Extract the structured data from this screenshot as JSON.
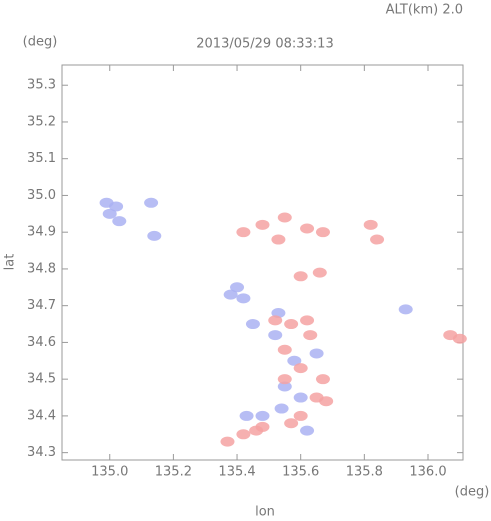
{
  "chart_data": {
    "type": "scatter",
    "title": "2013/05/29 08:33:13",
    "subtitle": "ALT(km) 2.0",
    "x_label": "lon",
    "y_label": "lat",
    "x_unit": "(deg)",
    "y_unit": "(deg)",
    "xlim": [
      134.85,
      136.11
    ],
    "ylim": [
      34.28,
      35.355
    ],
    "xticks": [
      {
        "value": 135,
        "label": "135.0"
      },
      135.2,
      135.4,
      135.6,
      135.8,
      {
        "value": 136,
        "label": "136.0"
      }
    ],
    "yticks": [
      34.3,
      34.4,
      34.5,
      34.6,
      34.7,
      34.8,
      34.9,
      {
        "value": 35,
        "label": "35.0"
      },
      35.1,
      35.2,
      35.3
    ],
    "series": [
      {
        "color": "#aab2f2",
        "x": [
          134.99,
          135.0,
          135.02,
          135.03,
          135.13,
          135.14,
          135.4,
          135.38,
          135.42,
          135.45,
          135.53,
          135.52,
          135.58,
          135.55,
          135.6,
          135.48,
          135.43,
          135.62,
          135.54,
          135.93,
          135.65
        ],
        "y": [
          34.98,
          34.95,
          34.97,
          34.93,
          34.98,
          34.89,
          34.75,
          34.73,
          34.72,
          34.65,
          34.68,
          34.62,
          34.55,
          34.48,
          34.45,
          34.4,
          34.4,
          34.36,
          34.42,
          34.69,
          34.57
        ]
      },
      {
        "color": "#f4a2a2",
        "x": [
          135.42,
          135.48,
          135.53,
          135.55,
          135.62,
          135.67,
          135.82,
          135.84,
          135.6,
          135.66,
          135.57,
          135.52,
          135.62,
          135.63,
          135.55,
          135.6,
          135.55,
          135.67,
          135.65,
          135.6,
          135.57,
          135.48,
          135.46,
          135.42,
          136.07,
          136.1,
          135.37,
          135.68
        ],
        "y": [
          34.9,
          34.92,
          34.88,
          34.94,
          34.91,
          34.9,
          34.92,
          34.88,
          34.78,
          34.79,
          34.65,
          34.66,
          34.66,
          34.62,
          34.58,
          34.53,
          34.5,
          34.5,
          34.45,
          34.4,
          34.38,
          34.37,
          34.36,
          34.35,
          34.62,
          34.61,
          34.33,
          34.44
        ]
      }
    ]
  }
}
